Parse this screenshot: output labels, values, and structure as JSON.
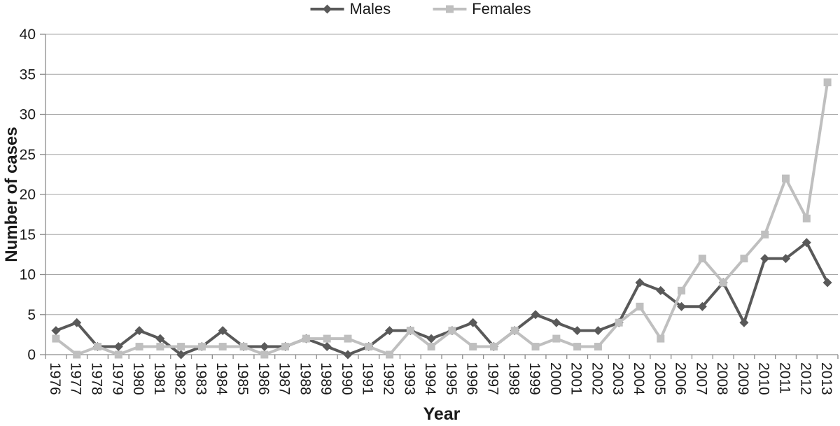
{
  "chart_data": {
    "type": "line",
    "title": "",
    "xlabel": "Year",
    "ylabel": "Number of cases",
    "categories": [
      "1976",
      "1977",
      "1978",
      "1979",
      "1980",
      "1981",
      "1982",
      "1983",
      "1984",
      "1985",
      "1986",
      "1987",
      "1988",
      "1989",
      "1990",
      "1991",
      "1992",
      "1993",
      "1994",
      "1995",
      "1996",
      "1997",
      "1998",
      "1999",
      "2000",
      "2001",
      "2002",
      "2003",
      "2004",
      "2005",
      "2006",
      "2007",
      "2008",
      "2009",
      "2010",
      "2011",
      "2012",
      "2013"
    ],
    "series": [
      {
        "name": "Males",
        "marker": "diamond",
        "color": "#595959",
        "values": [
          3,
          4,
          1,
          1,
          3,
          2,
          0,
          1,
          3,
          1,
          1,
          1,
          2,
          1,
          0,
          1,
          3,
          3,
          2,
          3,
          4,
          1,
          3,
          5,
          4,
          3,
          3,
          4,
          9,
          8,
          6,
          6,
          9,
          4,
          12,
          12,
          14,
          9
        ]
      },
      {
        "name": "Females",
        "marker": "square",
        "color": "#bfbfbf",
        "values": [
          2,
          0,
          1,
          0,
          1,
          1,
          1,
          1,
          1,
          1,
          0,
          1,
          2,
          2,
          2,
          1,
          0,
          3,
          1,
          3,
          1,
          1,
          3,
          1,
          2,
          1,
          1,
          4,
          6,
          2,
          8,
          12,
          9,
          12,
          15,
          22,
          17,
          34
        ]
      }
    ],
    "ylim": [
      0,
      40
    ],
    "ytick_step": 5,
    "yticks": [
      0,
      5,
      10,
      15,
      20,
      25,
      30,
      35,
      40
    ],
    "grid": true,
    "legend_position": "top",
    "colors": {
      "gridline": "#a6a6a6",
      "axis": "#8c8c8c",
      "text": "#1a1a1a"
    }
  }
}
